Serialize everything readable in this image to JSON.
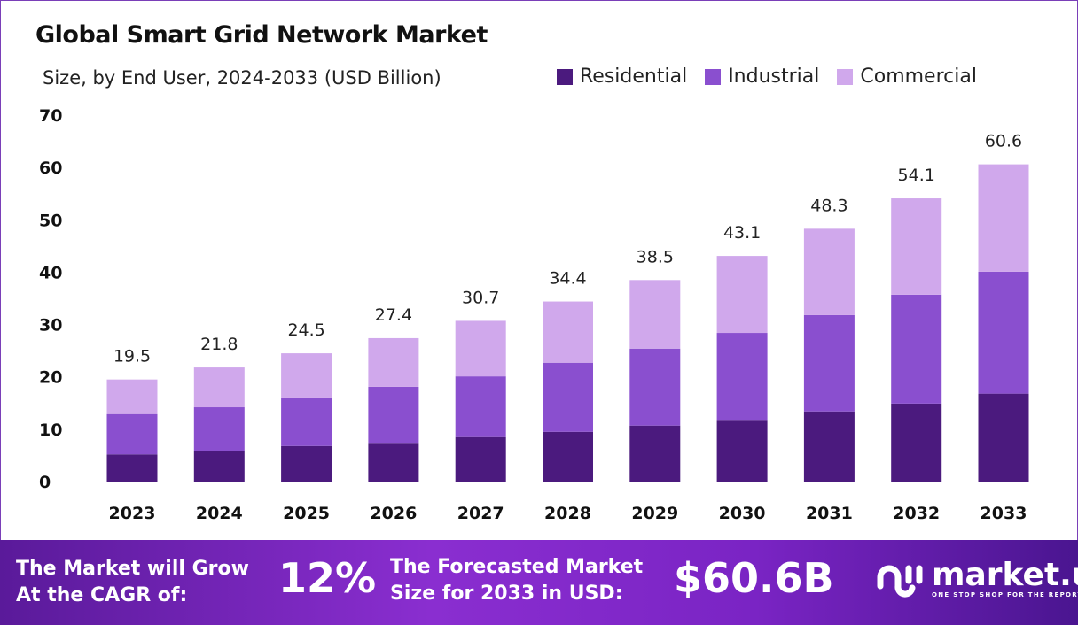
{
  "chart_data": {
    "type": "bar",
    "stacked": true,
    "title": "Global Smart Grid Network Market",
    "subtitle": "Size, by End User, 2024-2033 (USD Billion)",
    "categories": [
      "2023",
      "2024",
      "2025",
      "2026",
      "2027",
      "2028",
      "2029",
      "2030",
      "2031",
      "2032",
      "2033"
    ],
    "series": [
      {
        "name": "Residential",
        "color": "#4b1a7e",
        "values": [
          5.2,
          5.8,
          6.8,
          7.4,
          8.5,
          9.5,
          10.7,
          11.8,
          13.4,
          14.9,
          16.8
        ]
      },
      {
        "name": "Industrial",
        "color": "#8a4fcf",
        "values": [
          7.7,
          8.4,
          9.1,
          10.7,
          11.6,
          13.2,
          14.7,
          16.6,
          18.4,
          20.8,
          23.3
        ]
      },
      {
        "name": "Commercial",
        "color": "#d0a8ec",
        "values": [
          6.6,
          7.6,
          8.6,
          9.3,
          10.6,
          11.7,
          13.1,
          14.7,
          16.5,
          18.4,
          20.5
        ]
      }
    ],
    "totals": [
      "19.5",
      "21.8",
      "24.5",
      "27.4",
      "30.7",
      "34.4",
      "38.5",
      "43.1",
      "48.3",
      "54.1",
      "60.6"
    ],
    "ylim": [
      0,
      70
    ],
    "yticks": [
      "0",
      "10",
      "20",
      "30",
      "40",
      "50",
      "60",
      "70"
    ],
    "grid": false,
    "legend_position": "top-right"
  },
  "footer": {
    "cagr_label": [
      "The Market will Grow",
      "At the CAGR of:"
    ],
    "cagr_value": "12%",
    "forecast_label": [
      "The Forecasted Market",
      "Size for 2033 in USD:"
    ],
    "forecast_value": "$60.6B",
    "logo_text": "market.us",
    "logo_tagline": "ONE STOP SHOP FOR THE REPORTS"
  }
}
